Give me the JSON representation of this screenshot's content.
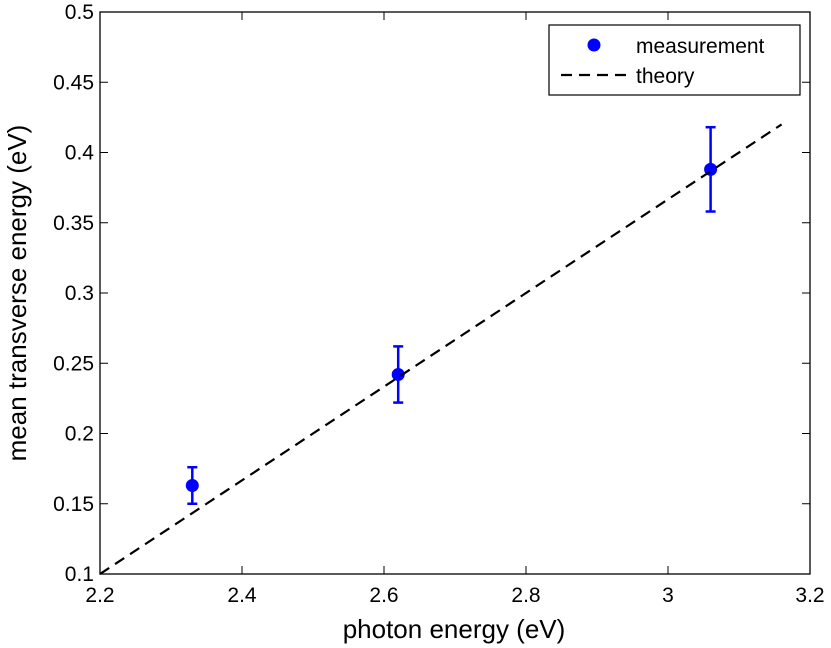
{
  "chart_data": {
    "type": "scatter",
    "title": "",
    "xlabel": "photon energy (eV)",
    "ylabel": "mean transverse energy (eV)",
    "xlim": [
      2.2,
      3.2
    ],
    "ylim": [
      0.1,
      0.5
    ],
    "x_ticks": [
      "2.2",
      "2.4",
      "2.6",
      "2.8",
      "3",
      "3.2"
    ],
    "y_ticks": [
      "0.1",
      "0.15",
      "0.2",
      "0.25",
      "0.3",
      "0.35",
      "0.4",
      "0.45",
      "0.5"
    ],
    "grid": false,
    "legend_position": "top-right",
    "series": [
      {
        "name": "measurement",
        "kind": "points-with-errorbars",
        "color": "#0000ff",
        "x": [
          2.33,
          2.62,
          3.06
        ],
        "y": [
          0.163,
          0.242,
          0.388
        ],
        "y_err_low": [
          0.15,
          0.222,
          0.358
        ],
        "y_err_high": [
          0.176,
          0.262,
          0.418
        ]
      },
      {
        "name": "theory",
        "kind": "dashed-line",
        "color": "#000000",
        "x": [
          2.2,
          3.16
        ],
        "y": [
          0.1,
          0.42
        ]
      }
    ]
  }
}
